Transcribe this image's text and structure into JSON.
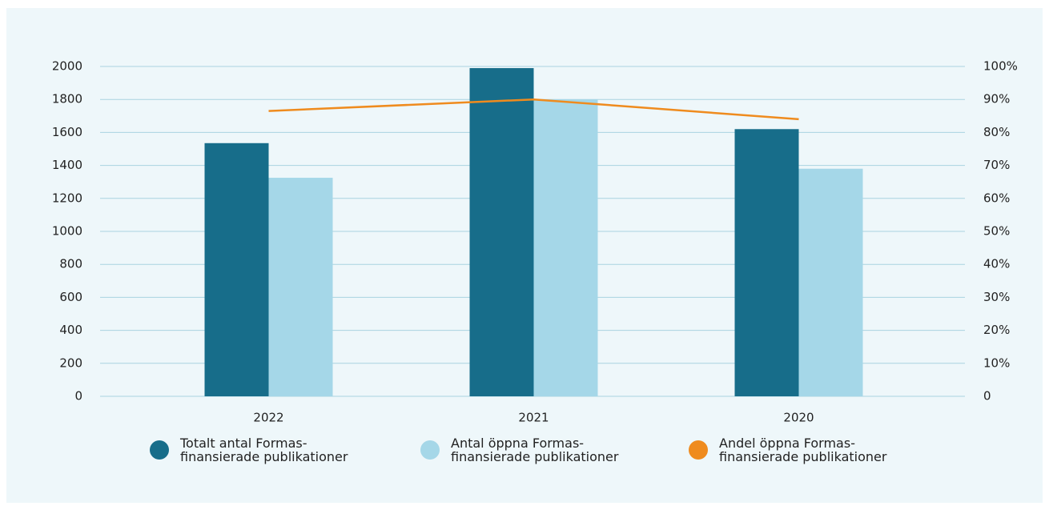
{
  "chart_data": {
    "type": "bar",
    "categories": [
      "2022",
      "2021",
      "2020"
    ],
    "series": [
      {
        "name": "Totalt antal Formas-finansierade publikationer",
        "color": "#176d8a",
        "values": [
          1535,
          1990,
          1620
        ]
      },
      {
        "name": "Antal öppna Formas-finansierade publikationer",
        "color": "#a5d7e8",
        "values": [
          1325,
          1800,
          1380
        ]
      },
      {
        "name": "Andel öppna Formas-finansierade publikationer",
        "color": "#ef8b1e",
        "type": "line",
        "axis": "y2",
        "values": [
          86.5,
          90,
          84
        ]
      }
    ],
    "ylim": [
      0,
      2000
    ],
    "yticks": [
      0,
      200,
      400,
      600,
      800,
      1000,
      1200,
      1400,
      1600,
      1800,
      2000
    ],
    "y2lim": [
      0,
      100
    ],
    "y2ticks": [
      0,
      {
        "value": 10,
        "label": "10%"
      },
      {
        "value": 20,
        "label": "20%"
      },
      {
        "value": 30,
        "label": "30%"
      },
      {
        "value": 40,
        "label": "40%"
      },
      {
        "value": 50,
        "label": "50%"
      },
      {
        "value": 60,
        "label": "60%"
      },
      {
        "value": 70,
        "label": "70%"
      },
      {
        "value": 80,
        "label": "80%"
      },
      {
        "value": 90,
        "label": "90%"
      },
      {
        "value": 100,
        "label": "100%"
      }
    ],
    "grid": true,
    "legend": "bottom"
  }
}
